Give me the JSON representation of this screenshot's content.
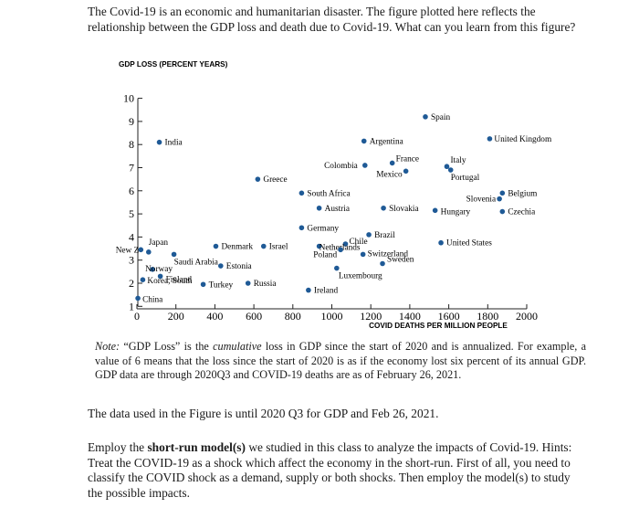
{
  "question": "The Covid-19 is an economic and humanitarian disaster. The figure plotted here reflects the relationship between the GDP loss and death due to Covid-19. What can you learn from this figure?",
  "chart_data": {
    "type": "scatter",
    "ylabel": "GDP LOSS (PERCENT YEARS)",
    "xlabel": "COVID DEATHS PER MILLION PEOPLE",
    "xlim": [
      0,
      2000
    ],
    "ylim": [
      1,
      10
    ],
    "xticks": [
      0,
      200,
      400,
      600,
      800,
      1000,
      1200,
      1400,
      1600,
      1800,
      2000
    ],
    "yticks": [
      1,
      2,
      3,
      4,
      5,
      6,
      7,
      8,
      9,
      10
    ],
    "grid": false,
    "color": "#1f5a96",
    "points": [
      {
        "label": "Spain",
        "x": 1480,
        "y": 9.2
      },
      {
        "label": "India",
        "x": 115,
        "y": 8.1
      },
      {
        "label": "Argentina",
        "x": 1165,
        "y": 8.15
      },
      {
        "label": "United Kingdom",
        "x": 1810,
        "y": 8.25
      },
      {
        "label": "Colombia",
        "x": 1170,
        "y": 7.1
      },
      {
        "label": "France",
        "x": 1310,
        "y": 7.2
      },
      {
        "label": "Mexico",
        "x": 1380,
        "y": 6.85
      },
      {
        "label": "Italy",
        "x": 1590,
        "y": 7.05
      },
      {
        "label": "Portugal",
        "x": 1610,
        "y": 6.9
      },
      {
        "label": "Greece",
        "x": 620,
        "y": 6.5
      },
      {
        "label": "South Africa",
        "x": 845,
        "y": 5.9
      },
      {
        "label": "Slovenia",
        "x": 1860,
        "y": 5.65
      },
      {
        "label": "Belgium",
        "x": 1875,
        "y": 5.9
      },
      {
        "label": "Austria",
        "x": 935,
        "y": 5.25
      },
      {
        "label": "Slovakia",
        "x": 1265,
        "y": 5.25
      },
      {
        "label": "Hungary",
        "x": 1530,
        "y": 5.15
      },
      {
        "label": "Czechia",
        "x": 1875,
        "y": 5.1
      },
      {
        "label": "Germany",
        "x": 845,
        "y": 4.4
      },
      {
        "label": "Brazil",
        "x": 1190,
        "y": 4.1
      },
      {
        "label": "United States",
        "x": 1560,
        "y": 3.75
      },
      {
        "label": "Chile",
        "x": 1070,
        "y": 3.7
      },
      {
        "label": "Netherlands",
        "x": 935,
        "y": 3.6
      },
      {
        "label": "Poland",
        "x": 1045,
        "y": 3.45
      },
      {
        "label": "Switzerland",
        "x": 1160,
        "y": 3.25
      },
      {
        "label": "Sweden",
        "x": 1260,
        "y": 2.85
      },
      {
        "label": "Luxembourg",
        "x": 1025,
        "y": 2.65
      },
      {
        "label": "Japan",
        "x": 60,
        "y": 3.35
      },
      {
        "label": "New Zealand",
        "x": 20,
        "y": 3.45
      },
      {
        "label": "Denmark",
        "x": 405,
        "y": 3.6
      },
      {
        "label": "Israel",
        "x": 650,
        "y": 3.6
      },
      {
        "label": "Saudi Arabia",
        "x": 190,
        "y": 3.25
      },
      {
        "label": "Estonia",
        "x": 430,
        "y": 2.75
      },
      {
        "label": "Norway",
        "x": 80,
        "y": 2.6
      },
      {
        "label": "Finland",
        "x": 120,
        "y": 2.3
      },
      {
        "label": "Korea, South",
        "x": 30,
        "y": 2.15
      },
      {
        "label": "Turkey",
        "x": 340,
        "y": 1.95
      },
      {
        "label": "Russia",
        "x": 570,
        "y": 2.0
      },
      {
        "label": "Ireland",
        "x": 880,
        "y": 1.7
      },
      {
        "label": "China",
        "x": 5,
        "y": 1.35
      }
    ]
  },
  "note": {
    "label": "Note:",
    "part1": "“GDP Loss” is the ",
    "emphasis": "cumulative",
    "part2": " loss in GDP since the start of 2020 and is annualized. For example, a value of 6 means that the loss since the start of 2020 is as if the economy lost six percent of its annual GDP. GDP data are through 2020Q3 and COVID-19 deaths are as of February 26, 2021."
  },
  "para1": "The data used in the Figure is until 2020 Q3 for GDP and Feb 26, 2021.",
  "para2": {
    "part1": "Employ the ",
    "bold": "short-run model(s)",
    "part2": " we studied in this class to analyze the impacts of Covid-19. Hints: Treat the COVID-19 as a shock which affect the economy in the short-run. First of all, you need to classify the COVID shock as a demand, supply or both shocks. Then employ the model(s) to study the possible impacts."
  }
}
